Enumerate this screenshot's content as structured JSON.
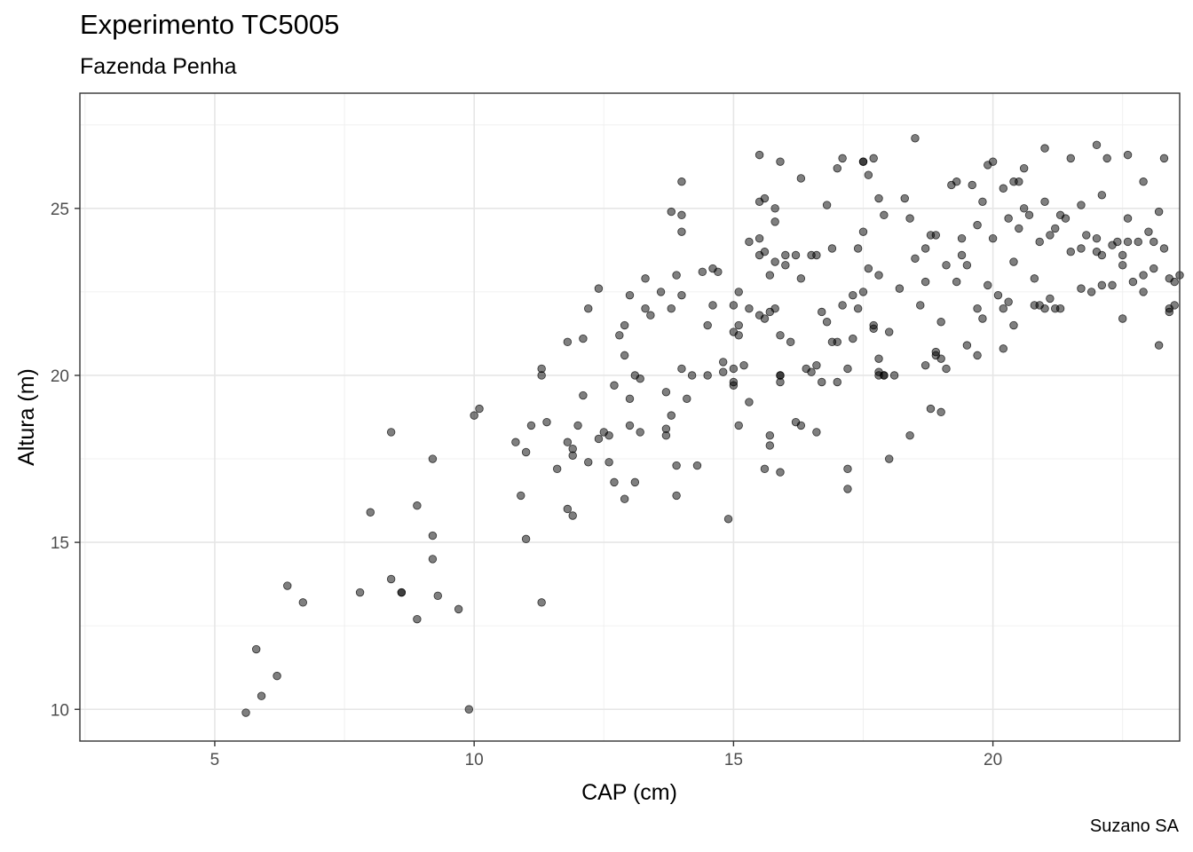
{
  "chart_data": {
    "type": "scatter",
    "title": "Experimento TC5005",
    "subtitle": "Fazenda Penha",
    "caption": "Suzano SA",
    "xlabel": "CAP (cm)",
    "ylabel": "Altura (m)",
    "xlim": [
      2.4,
      23.6
    ],
    "ylim": [
      9.05,
      28.45
    ],
    "xticks": [
      5,
      10,
      15,
      20
    ],
    "yticks": [
      10,
      15,
      20,
      25
    ],
    "grid": true,
    "point_color": "#000000",
    "point_alpha": 0.5,
    "points": [
      [
        5.6,
        9.9
      ],
      [
        5.8,
        11.8
      ],
      [
        5.9,
        10.4
      ],
      [
        6.2,
        11.0
      ],
      [
        6.4,
        13.7
      ],
      [
        6.7,
        13.2
      ],
      [
        7.8,
        13.5
      ],
      [
        8.0,
        15.9
      ],
      [
        8.4,
        13.9
      ],
      [
        8.4,
        18.3
      ],
      [
        8.6,
        13.5
      ],
      [
        8.6,
        13.5
      ],
      [
        8.9,
        12.7
      ],
      [
        8.9,
        16.1
      ],
      [
        9.2,
        17.5
      ],
      [
        9.2,
        15.2
      ],
      [
        9.2,
        14.5
      ],
      [
        9.3,
        13.4
      ],
      [
        9.7,
        13.0
      ],
      [
        9.9,
        10.0
      ],
      [
        10.0,
        18.8
      ],
      [
        10.1,
        19.0
      ],
      [
        10.8,
        18.0
      ],
      [
        10.9,
        16.4
      ],
      [
        11.0,
        15.1
      ],
      [
        11.0,
        17.7
      ],
      [
        11.1,
        18.5
      ],
      [
        11.3,
        20.2
      ],
      [
        11.3,
        20.0
      ],
      [
        11.3,
        13.2
      ],
      [
        11.4,
        18.6
      ],
      [
        11.6,
        17.2
      ],
      [
        11.8,
        21.0
      ],
      [
        11.8,
        18.0
      ],
      [
        11.8,
        16.0
      ],
      [
        11.9,
        17.8
      ],
      [
        11.9,
        15.8
      ],
      [
        11.9,
        17.6
      ],
      [
        12.0,
        18.5
      ],
      [
        12.1,
        19.4
      ],
      [
        12.1,
        21.1
      ],
      [
        12.2,
        17.4
      ],
      [
        12.2,
        22.0
      ],
      [
        12.4,
        22.6
      ],
      [
        12.4,
        18.1
      ],
      [
        12.5,
        18.3
      ],
      [
        12.6,
        18.2
      ],
      [
        12.6,
        17.4
      ],
      [
        12.7,
        19.7
      ],
      [
        12.7,
        16.8
      ],
      [
        12.8,
        21.2
      ],
      [
        12.9,
        21.5
      ],
      [
        12.9,
        16.3
      ],
      [
        12.9,
        20.6
      ],
      [
        13.0,
        22.4
      ],
      [
        13.0,
        19.3
      ],
      [
        13.0,
        18.5
      ],
      [
        13.1,
        20.0
      ],
      [
        13.1,
        16.8
      ],
      [
        13.2,
        19.9
      ],
      [
        13.2,
        18.3
      ],
      [
        13.3,
        22.9
      ],
      [
        13.3,
        22.0
      ],
      [
        13.4,
        21.8
      ],
      [
        13.6,
        22.5
      ],
      [
        13.7,
        18.4
      ],
      [
        13.7,
        19.5
      ],
      [
        13.7,
        18.2
      ],
      [
        13.8,
        22.0
      ],
      [
        13.8,
        18.8
      ],
      [
        13.8,
        24.9
      ],
      [
        13.9,
        23.0
      ],
      [
        13.9,
        17.3
      ],
      [
        13.9,
        16.4
      ],
      [
        14.0,
        24.3
      ],
      [
        14.0,
        22.4
      ],
      [
        14.0,
        25.8
      ],
      [
        14.0,
        24.8
      ],
      [
        14.0,
        20.2
      ],
      [
        14.1,
        19.3
      ],
      [
        14.2,
        20.0
      ],
      [
        14.3,
        17.3
      ],
      [
        14.4,
        23.1
      ],
      [
        14.5,
        20.0
      ],
      [
        14.5,
        21.5
      ],
      [
        14.6,
        23.2
      ],
      [
        14.6,
        22.1
      ],
      [
        14.7,
        23.1
      ],
      [
        14.8,
        20.4
      ],
      [
        14.8,
        20.1
      ],
      [
        14.9,
        15.7
      ],
      [
        15.0,
        19.8
      ],
      [
        15.0,
        20.2
      ],
      [
        15.0,
        19.7
      ],
      [
        15.0,
        22.1
      ],
      [
        15.0,
        21.3
      ],
      [
        15.1,
        22.5
      ],
      [
        15.1,
        21.2
      ],
      [
        15.1,
        18.5
      ],
      [
        15.1,
        21.5
      ],
      [
        15.2,
        20.3
      ],
      [
        15.3,
        19.2
      ],
      [
        15.3,
        24.0
      ],
      [
        15.3,
        22.0
      ],
      [
        15.5,
        24.1
      ],
      [
        15.5,
        23.6
      ],
      [
        15.5,
        25.2
      ],
      [
        15.5,
        26.6
      ],
      [
        15.5,
        21.8
      ],
      [
        15.6,
        17.2
      ],
      [
        15.6,
        25.3
      ],
      [
        15.6,
        21.7
      ],
      [
        15.6,
        23.7
      ],
      [
        15.7,
        21.9
      ],
      [
        15.7,
        18.2
      ],
      [
        15.7,
        17.9
      ],
      [
        15.7,
        23.0
      ],
      [
        15.8,
        22.0
      ],
      [
        15.8,
        24.6
      ],
      [
        15.8,
        25.0
      ],
      [
        15.8,
        23.4
      ],
      [
        15.9,
        21.2
      ],
      [
        15.9,
        20.0
      ],
      [
        15.9,
        19.8
      ],
      [
        15.9,
        20.0
      ],
      [
        15.9,
        17.1
      ],
      [
        15.9,
        26.4
      ],
      [
        16.0,
        23.3
      ],
      [
        16.0,
        23.6
      ],
      [
        16.1,
        21.0
      ],
      [
        16.2,
        18.6
      ],
      [
        16.2,
        23.6
      ],
      [
        16.3,
        18.5
      ],
      [
        16.3,
        25.9
      ],
      [
        16.3,
        22.9
      ],
      [
        16.4,
        20.2
      ],
      [
        16.5,
        20.1
      ],
      [
        16.5,
        23.6
      ],
      [
        16.6,
        18.3
      ],
      [
        16.6,
        20.3
      ],
      [
        16.6,
        23.6
      ],
      [
        16.7,
        21.9
      ],
      [
        16.7,
        19.8
      ],
      [
        16.8,
        25.1
      ],
      [
        16.8,
        21.6
      ],
      [
        16.9,
        21.0
      ],
      [
        16.9,
        23.8
      ],
      [
        17.0,
        26.2
      ],
      [
        17.0,
        21.0
      ],
      [
        17.0,
        19.8
      ],
      [
        17.1,
        26.5
      ],
      [
        17.1,
        22.1
      ],
      [
        17.2,
        20.2
      ],
      [
        17.2,
        16.6
      ],
      [
        17.2,
        17.2
      ],
      [
        17.3,
        21.1
      ],
      [
        17.3,
        22.4
      ],
      [
        17.4,
        23.8
      ],
      [
        17.4,
        22.0
      ],
      [
        17.5,
        26.4
      ],
      [
        17.5,
        26.4
      ],
      [
        17.5,
        22.5
      ],
      [
        17.5,
        24.3
      ],
      [
        17.6,
        23.2
      ],
      [
        17.6,
        26.0
      ],
      [
        17.7,
        21.4
      ],
      [
        17.7,
        26.5
      ],
      [
        17.7,
        21.5
      ],
      [
        17.8,
        25.3
      ],
      [
        17.8,
        20.0
      ],
      [
        17.8,
        20.1
      ],
      [
        17.8,
        20.5
      ],
      [
        17.8,
        23.0
      ],
      [
        17.9,
        20.0
      ],
      [
        17.9,
        20.0
      ],
      [
        17.9,
        24.8
      ],
      [
        18.0,
        21.3
      ],
      [
        18.0,
        17.5
      ],
      [
        18.1,
        20.0
      ],
      [
        18.2,
        22.6
      ],
      [
        18.3,
        25.3
      ],
      [
        18.4,
        18.2
      ],
      [
        18.4,
        24.7
      ],
      [
        18.5,
        27.1
      ],
      [
        18.5,
        23.5
      ],
      [
        18.6,
        22.1
      ],
      [
        18.7,
        23.8
      ],
      [
        18.7,
        22.8
      ],
      [
        18.7,
        20.3
      ],
      [
        18.8,
        24.2
      ],
      [
        18.8,
        19.0
      ],
      [
        18.9,
        24.2
      ],
      [
        18.9,
        20.7
      ],
      [
        18.9,
        20.6
      ],
      [
        19.0,
        21.6
      ],
      [
        19.0,
        18.9
      ],
      [
        19.0,
        20.5
      ],
      [
        19.1,
        20.2
      ],
      [
        19.1,
        23.3
      ],
      [
        19.2,
        25.7
      ],
      [
        19.3,
        25.8
      ],
      [
        19.3,
        22.8
      ],
      [
        19.4,
        23.6
      ],
      [
        19.4,
        24.1
      ],
      [
        19.5,
        20.9
      ],
      [
        19.5,
        23.3
      ],
      [
        19.6,
        25.7
      ],
      [
        19.7,
        24.5
      ],
      [
        19.7,
        22.0
      ],
      [
        19.7,
        20.6
      ],
      [
        19.8,
        25.2
      ],
      [
        19.8,
        21.7
      ],
      [
        19.9,
        26.3
      ],
      [
        19.9,
        22.7
      ],
      [
        20.0,
        24.1
      ],
      [
        20.0,
        26.4
      ],
      [
        20.1,
        22.4
      ],
      [
        20.2,
        20.8
      ],
      [
        20.2,
        22.0
      ],
      [
        20.2,
        25.6
      ],
      [
        20.3,
        24.7
      ],
      [
        20.3,
        22.2
      ],
      [
        20.4,
        21.5
      ],
      [
        20.4,
        25.8
      ],
      [
        20.4,
        23.4
      ],
      [
        20.5,
        25.8
      ],
      [
        20.5,
        24.4
      ],
      [
        20.6,
        26.2
      ],
      [
        20.6,
        25.0
      ],
      [
        20.7,
        24.8
      ],
      [
        20.8,
        22.9
      ],
      [
        20.8,
        22.1
      ],
      [
        20.9,
        24.0
      ],
      [
        20.9,
        22.1
      ],
      [
        21.0,
        25.2
      ],
      [
        21.0,
        26.8
      ],
      [
        21.0,
        22.0
      ],
      [
        21.1,
        24.2
      ],
      [
        21.1,
        22.3
      ],
      [
        21.2,
        24.4
      ],
      [
        21.2,
        22.0
      ],
      [
        21.3,
        22.0
      ],
      [
        21.3,
        24.8
      ],
      [
        21.4,
        24.7
      ],
      [
        21.5,
        26.5
      ],
      [
        21.5,
        23.7
      ],
      [
        21.7,
        23.8
      ],
      [
        21.7,
        25.1
      ],
      [
        21.7,
        22.6
      ],
      [
        21.8,
        24.2
      ],
      [
        21.9,
        22.5
      ],
      [
        22.0,
        26.9
      ],
      [
        22.0,
        23.7
      ],
      [
        22.0,
        24.1
      ],
      [
        22.1,
        25.4
      ],
      [
        22.1,
        22.7
      ],
      [
        22.1,
        23.6
      ],
      [
        22.2,
        26.5
      ],
      [
        22.3,
        23.9
      ],
      [
        22.3,
        22.7
      ],
      [
        22.4,
        24.0
      ],
      [
        22.5,
        21.7
      ],
      [
        22.5,
        23.6
      ],
      [
        22.5,
        23.3
      ],
      [
        22.6,
        24.0
      ],
      [
        22.6,
        24.7
      ],
      [
        22.6,
        26.6
      ],
      [
        22.7,
        22.8
      ],
      [
        22.8,
        24.0
      ],
      [
        22.9,
        25.8
      ],
      [
        22.9,
        23.0
      ],
      [
        22.9,
        22.5
      ],
      [
        23.0,
        24.3
      ],
      [
        23.1,
        23.2
      ],
      [
        23.1,
        24.0
      ],
      [
        23.2,
        20.9
      ],
      [
        23.2,
        24.9
      ],
      [
        23.3,
        26.5
      ],
      [
        23.3,
        23.8
      ],
      [
        23.4,
        22.0
      ],
      [
        23.4,
        22.9
      ],
      [
        23.4,
        21.9
      ],
      [
        23.5,
        22.8
      ],
      [
        23.5,
        22.1
      ],
      [
        23.6,
        23.0
      ]
    ]
  }
}
